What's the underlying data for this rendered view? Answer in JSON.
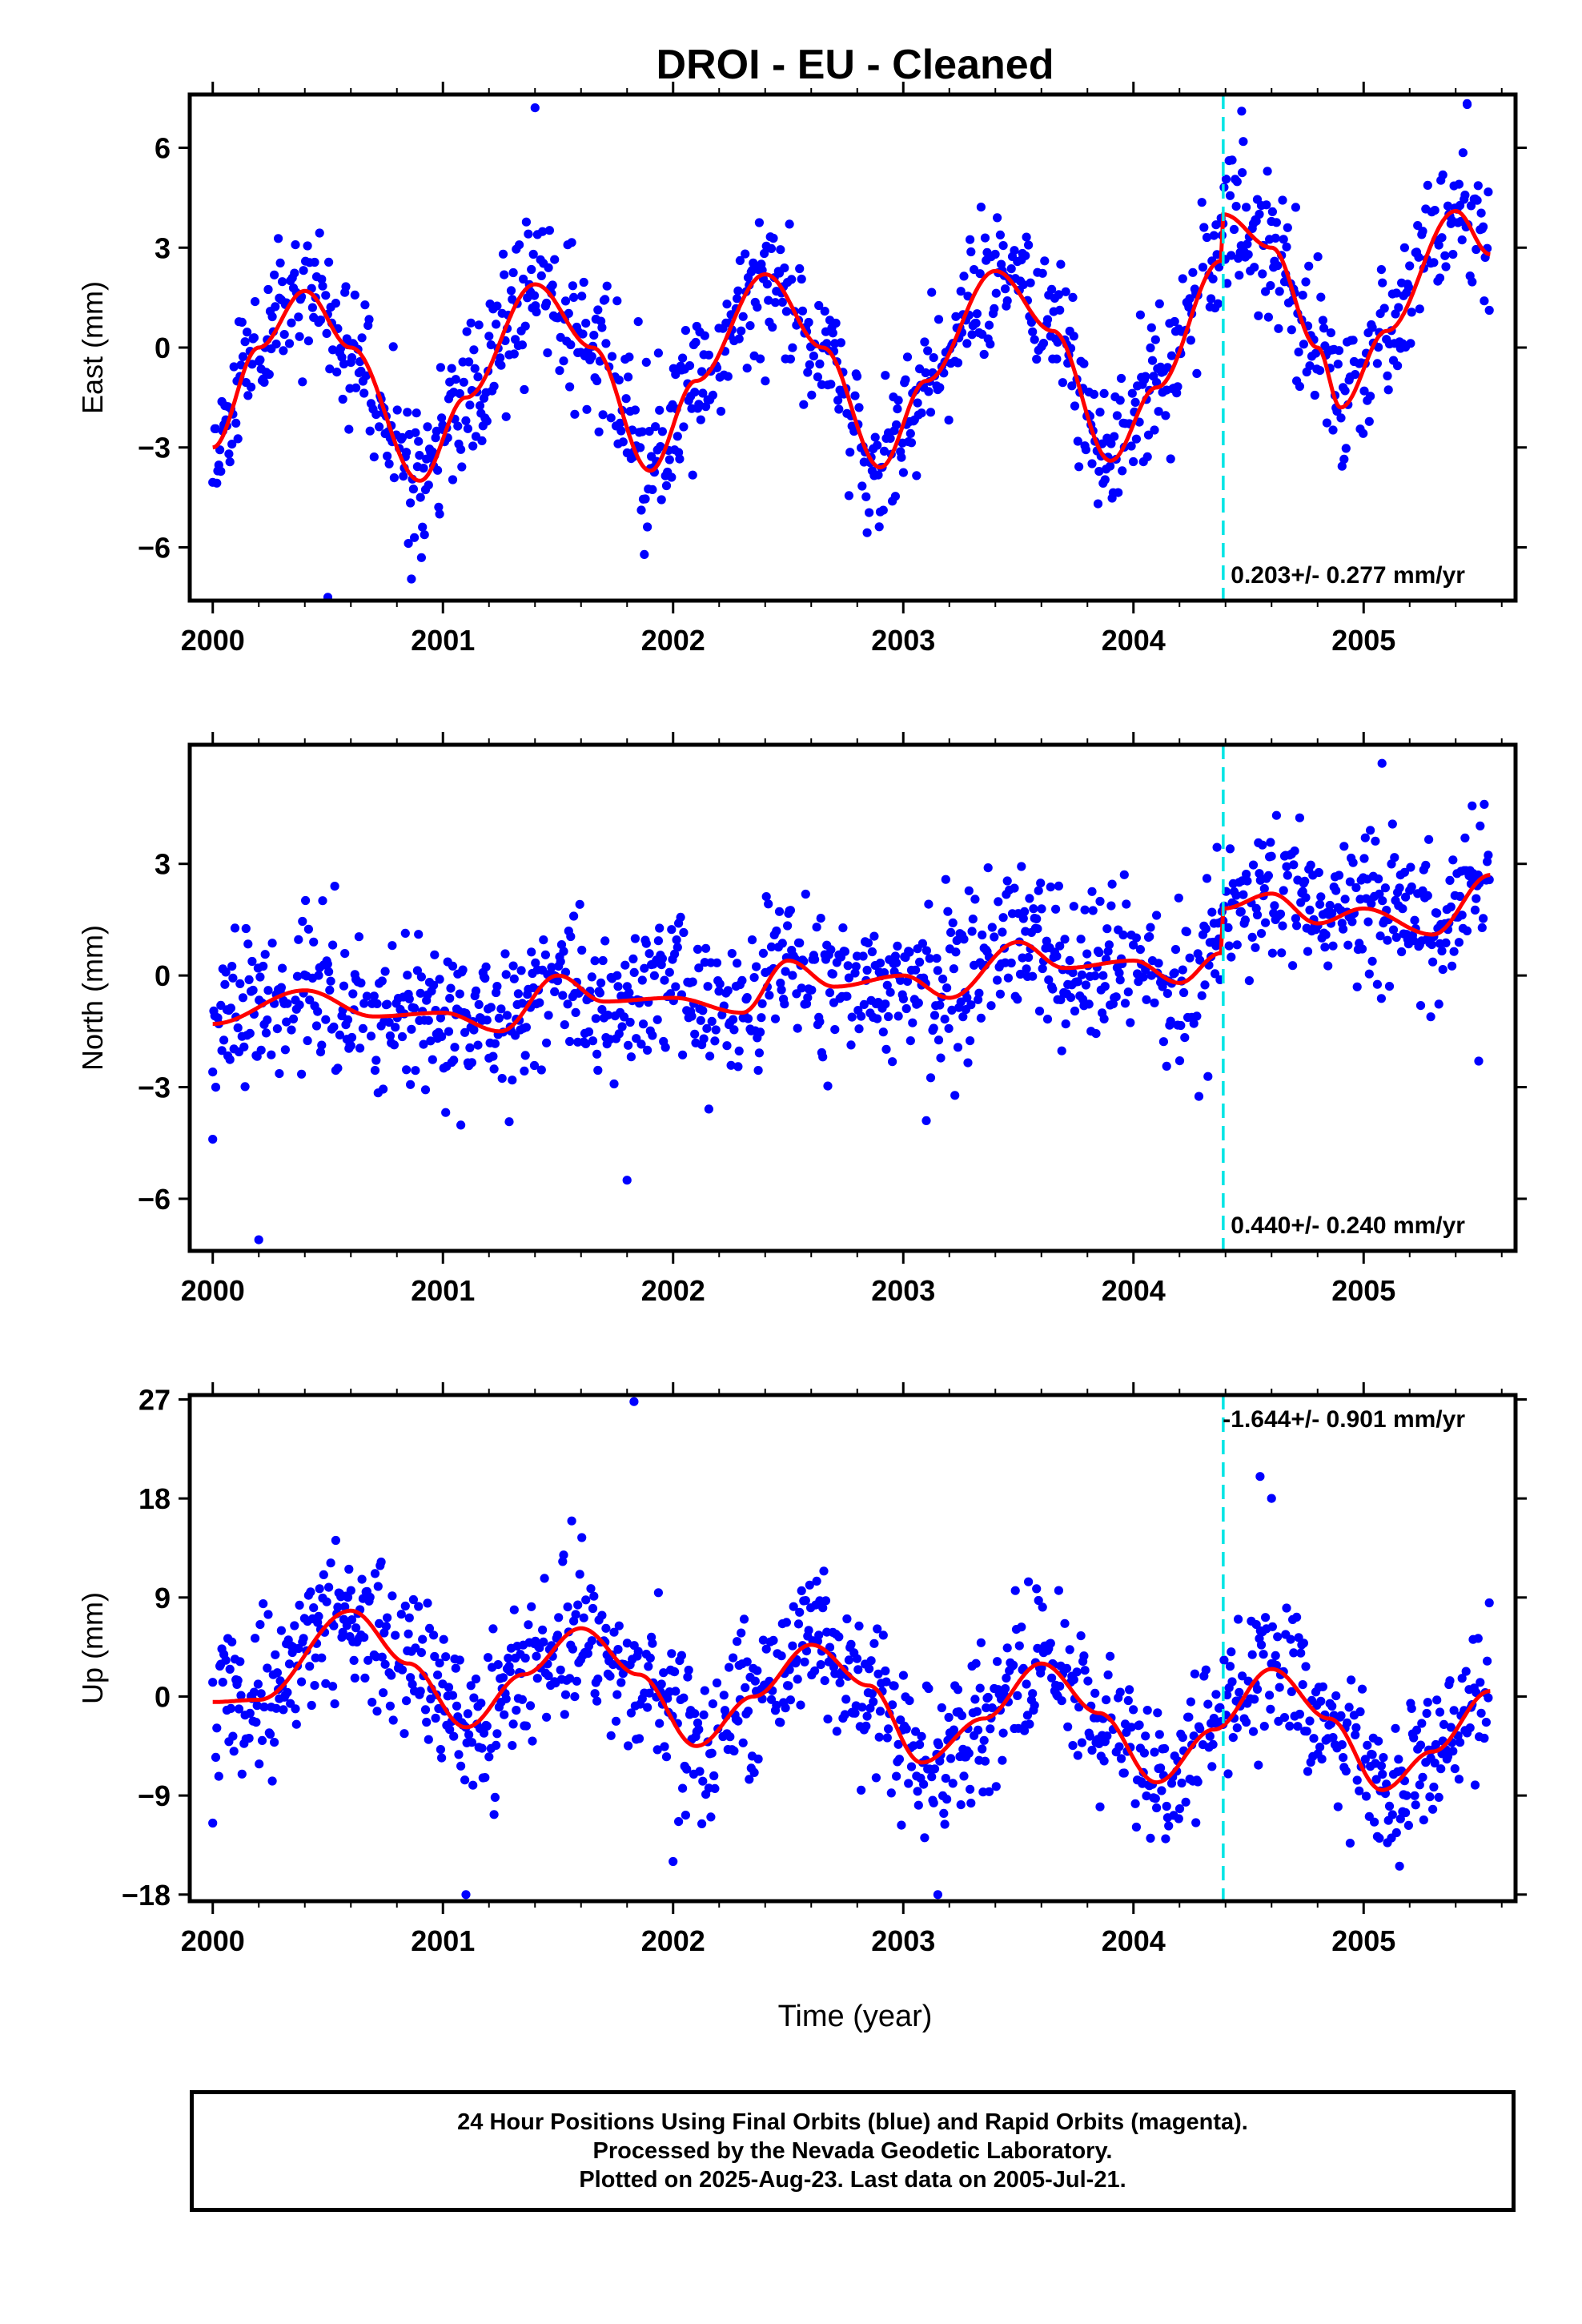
{
  "title": "DROI  - EU - Cleaned",
  "xlabel": "Time (year)",
  "footer": {
    "line1": "24 Hour Positions Using Final Orbits (blue) and Rapid Orbits (magenta).",
    "line2": "Processed by the Nevada Geodetic Laboratory.",
    "line3": "Plotted on 2025-Aug-23. Last data on 2005-Jul-21."
  },
  "colors": {
    "final_orbits": "#0000ff",
    "model_fit": "#ff0000",
    "offset_marker": "#00e5e5"
  },
  "chart_data": [
    {
      "type": "scatter",
      "name": "east",
      "ylabel": "East (mm)",
      "xlim": [
        1999.9,
        2005.66
      ],
      "ylim": [
        -7.6,
        7.6
      ],
      "xticks": [
        2000,
        2001,
        2002,
        2003,
        2004,
        2005
      ],
      "yticks": [
        6,
        3,
        0,
        -3,
        -6
      ],
      "rate_label": "0.203+/- 0.277 mm/yr",
      "offset_epoch": 2004.39,
      "model": {
        "x": [
          2000.0,
          2000.2,
          2000.4,
          2000.6,
          2000.9,
          2001.1,
          2001.4,
          2001.65,
          2001.9,
          2002.1,
          2002.4,
          2002.65,
          2002.9,
          2003.1,
          2003.4,
          2003.65,
          2003.9,
          2004.1,
          2004.38,
          2004.39,
          2004.6,
          2004.8,
          2004.9,
          2005.1,
          2005.4,
          2005.55
        ],
        "y": [
          -3.0,
          0.0,
          1.7,
          0.0,
          -4.0,
          -1.5,
          1.9,
          0.0,
          -3.7,
          -1.0,
          2.2,
          0.0,
          -3.6,
          -1.0,
          2.3,
          0.5,
          -3.4,
          -1.2,
          2.6,
          4.0,
          3.0,
          0.0,
          -1.8,
          0.5,
          4.1,
          2.8
        ]
      },
      "seed": 11,
      "noise": 1.1,
      "outliers": {
        "x": [
          2001.4,
          2004.47,
          2005.45,
          2000.5
        ],
        "y": [
          7.2,
          7.1,
          7.3,
          -7.5
        ]
      }
    },
    {
      "type": "scatter",
      "name": "north",
      "ylabel": "North (mm)",
      "xlim": [
        1999.9,
        2005.66
      ],
      "ylim": [
        -7.4,
        6.2
      ],
      "xticks": [
        2000,
        2001,
        2002,
        2003,
        2004,
        2005
      ],
      "yticks": [
        3,
        0,
        -3,
        -6
      ],
      "rate_label": "0.440+/- 0.240 mm/yr",
      "offset_epoch": 2004.39,
      "model": {
        "x": [
          2000.0,
          2000.4,
          2000.7,
          2001.0,
          2001.25,
          2001.5,
          2001.7,
          2002.0,
          2002.3,
          2002.5,
          2002.7,
          2003.0,
          2003.2,
          2003.5,
          2003.7,
          2004.0,
          2004.2,
          2004.38,
          2004.39,
          2004.6,
          2004.8,
          2005.0,
          2005.3,
          2005.55
        ],
        "y": [
          -1.3,
          -0.4,
          -1.1,
          -1.0,
          -1.5,
          0.0,
          -0.7,
          -0.6,
          -1.0,
          0.4,
          -0.3,
          0.0,
          -0.6,
          0.9,
          0.2,
          0.4,
          -0.2,
          0.6,
          1.8,
          2.2,
          1.4,
          1.8,
          1.1,
          2.7
        ]
      },
      "seed": 23,
      "noise": 1.0,
      "outliers": {
        "x": [
          2000.0,
          2000.2,
          2001.8,
          2003.1,
          2005.5,
          2005.08
        ],
        "y": [
          -4.4,
          -7.1,
          -5.5,
          -3.9,
          -2.3,
          5.7
        ]
      }
    },
    {
      "type": "scatter",
      "name": "up",
      "ylabel": "Up (mm)",
      "xlim": [
        1999.9,
        2005.66
      ],
      "ylim": [
        -18.6,
        27.4
      ],
      "xticks": [
        2000,
        2001,
        2002,
        2003,
        2004,
        2005
      ],
      "yticks": [
        27,
        18,
        9,
        0,
        -9,
        -18
      ],
      "rate_label": "-1.644+/- 0.901 mm/yr",
      "offset_epoch": 2004.39,
      "model": {
        "x": [
          2000.0,
          2000.2,
          2000.6,
          2000.85,
          2001.1,
          2001.35,
          2001.6,
          2001.85,
          2002.1,
          2002.35,
          2002.6,
          2002.85,
          2003.08,
          2003.35,
          2003.6,
          2003.85,
          2004.1,
          2004.35,
          2004.6,
          2004.85,
          2005.08,
          2005.3,
          2005.55
        ],
        "y": [
          -0.5,
          -0.3,
          7.8,
          3.0,
          -2.8,
          2.0,
          6.2,
          2.0,
          -4.5,
          0.0,
          4.7,
          1.0,
          -6.0,
          -2.0,
          3.0,
          -1.5,
          -7.8,
          -3.0,
          2.5,
          -2.0,
          -8.5,
          -5.0,
          0.5
        ]
      },
      "seed": 37,
      "noise": 3.3,
      "outliers": {
        "x": [
          2001.83,
          2001.1,
          2003.15,
          2004.55,
          2004.6,
          2000.0,
          2002.0
        ],
        "y": [
          26.8,
          -18.0,
          -18.0,
          20.0,
          18.0,
          -11.5,
          -15.0
        ]
      }
    }
  ]
}
